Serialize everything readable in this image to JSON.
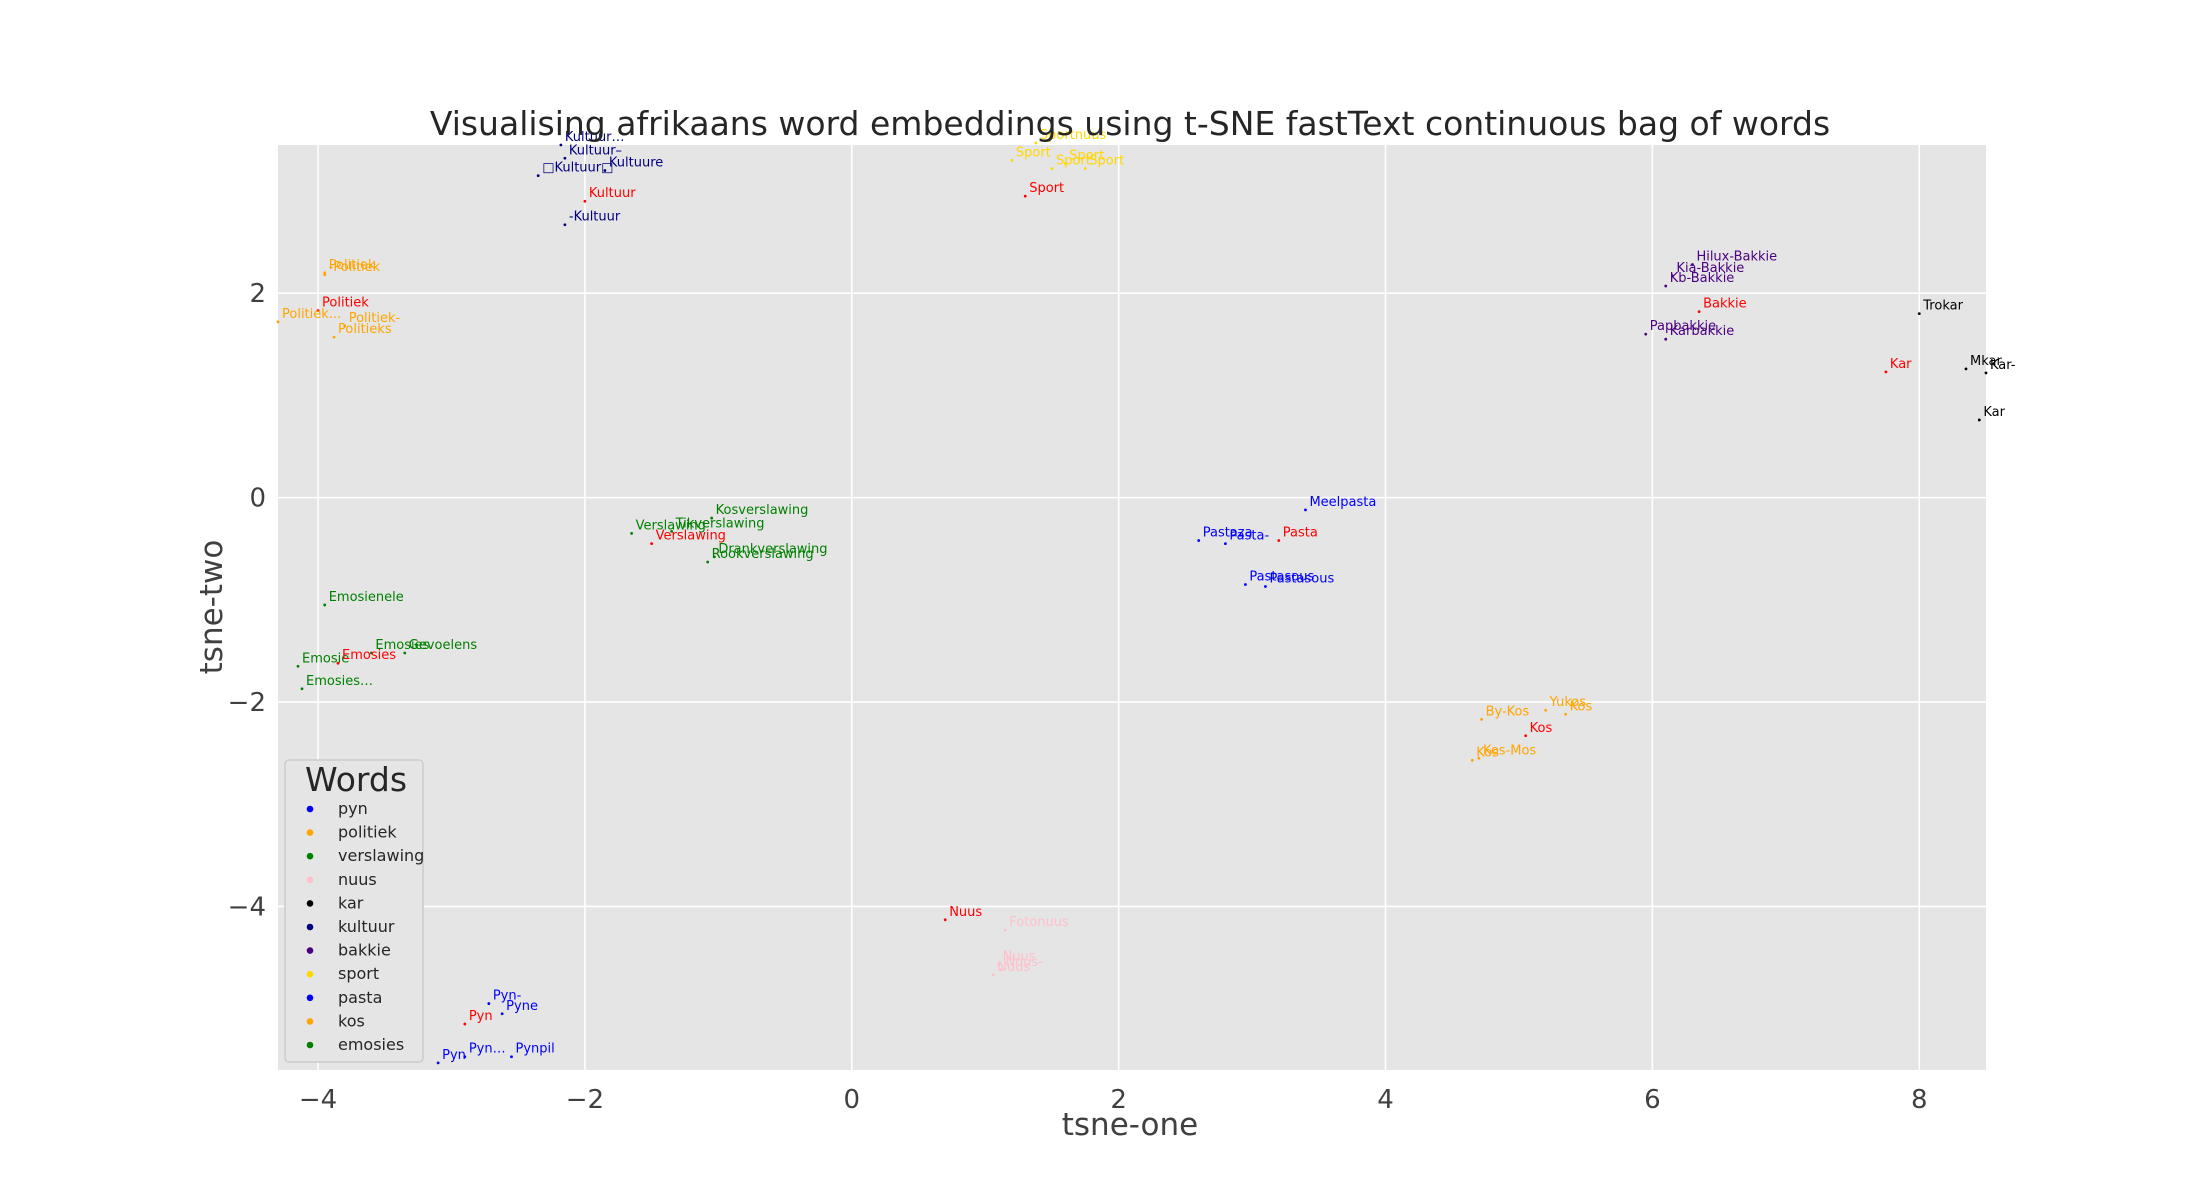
{
  "chart_data": {
    "type": "scatter",
    "title": "Visualising afrikaans word embeddings using t-SNE fastText continuous bag of words",
    "xlabel": "tsne-one",
    "ylabel": "tsne-two",
    "xlim": [
      -4.3,
      8.5
    ],
    "ylim": [
      -5.6,
      3.45
    ],
    "xticks": [
      -4,
      -2,
      0,
      2,
      4,
      6,
      8
    ],
    "yticks": [
      -4,
      -2,
      0,
      2
    ],
    "grid": true,
    "legend": {
      "title": "Words",
      "position": "lower-left",
      "entries": [
        {
          "label": "pyn",
          "color": "#0000ff"
        },
        {
          "label": "politiek",
          "color": "#ffa500"
        },
        {
          "label": "verslawing",
          "color": "#008000"
        },
        {
          "label": "nuus",
          "color": "#ffc0cb"
        },
        {
          "label": "kar",
          "color": "#000000"
        },
        {
          "label": "kultuur",
          "color": "#000080"
        },
        {
          "label": "bakkie",
          "color": "#4b0082"
        },
        {
          "label": "sport",
          "color": "#ffd700"
        },
        {
          "label": "pasta",
          "color": "#0000ff"
        },
        {
          "label": "kos",
          "color": "#ffa500"
        },
        {
          "label": "emosies",
          "color": "#008000"
        }
      ]
    },
    "query_color": "#ff0000",
    "points": [
      {
        "label": "Pyn",
        "x": -2.9,
        "y": -5.15,
        "color": "#ff0000"
      },
      {
        "label": "Pyn-",
        "x": -2.72,
        "y": -4.95,
        "color": "#0000ff"
      },
      {
        "label": "Pyne",
        "x": -2.62,
        "y": -5.05,
        "color": "#0000ff"
      },
      {
        "label": "Pyn",
        "x": -3.1,
        "y": -5.53,
        "color": "#0000ff"
      },
      {
        "label": "Pyn…",
        "x": -2.9,
        "y": -5.47,
        "color": "#0000ff"
      },
      {
        "label": "Pynpil",
        "x": -2.55,
        "y": -5.47,
        "color": "#0000ff"
      },
      {
        "label": "Politiek",
        "x": -4.0,
        "y": 1.83,
        "color": "#ff0000"
      },
      {
        "label": "Politiek",
        "x": -3.95,
        "y": 2.2,
        "color": "#ffa500"
      },
      {
        "label": "-Politiek",
        "x": -3.95,
        "y": 2.18,
        "color": "#ffa500"
      },
      {
        "label": "Politiek...",
        "x": -4.3,
        "y": 1.72,
        "color": "#ffa500"
      },
      {
        "label": "Politiek-",
        "x": -3.8,
        "y": 1.68,
        "color": "#ffa500"
      },
      {
        "label": "Politieks",
        "x": -3.88,
        "y": 1.57,
        "color": "#ffa500"
      },
      {
        "label": "Kosverslawing",
        "x": -1.05,
        "y": -0.2,
        "color": "#008000"
      },
      {
        "label": "Verslawing",
        "x": -1.65,
        "y": -0.35,
        "color": "#008000"
      },
      {
        "label": "Tikverslawing",
        "x": -1.35,
        "y": -0.33,
        "color": "#008000"
      },
      {
        "label": "Verslawing",
        "x": -1.5,
        "y": -0.45,
        "color": "#ff0000"
      },
      {
        "label": "Drankverslawing",
        "x": -1.03,
        "y": -0.58,
        "color": "#008000"
      },
      {
        "label": "Rookverslawing",
        "x": -1.08,
        "y": -0.63,
        "color": "#008000"
      },
      {
        "label": "Nuus",
        "x": 0.7,
        "y": -4.13,
        "color": "#ff0000"
      },
      {
        "label": "Fotonuus",
        "x": 1.15,
        "y": -4.23,
        "color": "#ffc0cb"
      },
      {
        "label": "Nuus",
        "x": 1.1,
        "y": -4.57,
        "color": "#ffc0cb"
      },
      {
        "label": "Nuus-",
        "x": 1.12,
        "y": -4.62,
        "color": "#ffc0cb"
      },
      {
        "label": "Nuus",
        "x": 1.06,
        "y": -4.67,
        "color": "#ffc0cb"
      },
      {
        "label": "Kar",
        "x": 7.75,
        "y": 1.23,
        "color": "#ff0000"
      },
      {
        "label": "Trokar",
        "x": 8.0,
        "y": 1.8,
        "color": "#000000"
      },
      {
        "label": "Mkar",
        "x": 8.35,
        "y": 1.26,
        "color": "#000000"
      },
      {
        "label": "Kar-",
        "x": 8.5,
        "y": 1.22,
        "color": "#000000"
      },
      {
        "label": "Kar",
        "x": 8.45,
        "y": 0.76,
        "color": "#000000"
      },
      {
        "label": "Kultuur…",
        "x": -2.18,
        "y": 3.45,
        "color": "#000080"
      },
      {
        "label": "Kultuur–",
        "x": -2.15,
        "y": 3.32,
        "color": "#000080"
      },
      {
        "label": "Kultuure",
        "x": -1.85,
        "y": 3.2,
        "color": "#000080"
      },
      {
        "label": "□Kultuur□",
        "x": -2.35,
        "y": 3.15,
        "color": "#000080"
      },
      {
        "label": "Kultuur",
        "x": -2.0,
        "y": 2.9,
        "color": "#ff0000"
      },
      {
        "label": "-Kultuur",
        "x": -2.15,
        "y": 2.67,
        "color": "#000080"
      },
      {
        "label": "Hilux-Bakkie",
        "x": 6.3,
        "y": 2.28,
        "color": "#4b0082"
      },
      {
        "label": "Kia-Bakkie",
        "x": 6.15,
        "y": 2.17,
        "color": "#4b0082"
      },
      {
        "label": "Kb-Bakkie",
        "x": 6.1,
        "y": 2.07,
        "color": "#4b0082"
      },
      {
        "label": "Bakkie",
        "x": 6.35,
        "y": 1.82,
        "color": "#ff0000"
      },
      {
        "label": "Papbakkie",
        "x": 5.95,
        "y": 1.6,
        "color": "#4b0082"
      },
      {
        "label": "Karbakkie",
        "x": 6.1,
        "y": 1.55,
        "color": "#4b0082"
      },
      {
        "label": "Sport",
        "x": 1.3,
        "y": 2.95,
        "color": "#ff0000"
      },
      {
        "label": "Sportnuus",
        "x": 1.38,
        "y": 3.47,
        "color": "#ffd700"
      },
      {
        "label": "Sport",
        "x": 1.2,
        "y": 3.3,
        "color": "#ffd700"
      },
      {
        "label": "Sport",
        "x": 1.6,
        "y": 3.27,
        "color": "#ffd700"
      },
      {
        "label": "Sport",
        "x": 1.5,
        "y": 3.22,
        "color": "#ffd700"
      },
      {
        "label": "Sport",
        "x": 1.75,
        "y": 3.22,
        "color": "#ffd700"
      },
      {
        "label": "Meelpasta",
        "x": 3.4,
        "y": -0.12,
        "color": "#0000ff"
      },
      {
        "label": "Pastaza",
        "x": 2.6,
        "y": -0.42,
        "color": "#0000ff"
      },
      {
        "label": "Pasta-",
        "x": 2.8,
        "y": -0.45,
        "color": "#0000ff"
      },
      {
        "label": "Pasta",
        "x": 3.2,
        "y": -0.42,
        "color": "#ff0000"
      },
      {
        "label": "Pastasous",
        "x": 2.95,
        "y": -0.85,
        "color": "#0000ff"
      },
      {
        "label": "Pastasous",
        "x": 3.1,
        "y": -0.87,
        "color": "#0000ff"
      },
      {
        "label": "Yukos",
        "x": 5.2,
        "y": -2.08,
        "color": "#ffa500"
      },
      {
        "label": "Kos",
        "x": 5.35,
        "y": -2.12,
        "color": "#ffa500"
      },
      {
        "label": "By-Kos",
        "x": 4.72,
        "y": -2.17,
        "color": "#ffa500"
      },
      {
        "label": "Kos",
        "x": 5.05,
        "y": -2.33,
        "color": "#ff0000"
      },
      {
        "label": "Kos",
        "x": 4.65,
        "y": -2.57,
        "color": "#ffa500"
      },
      {
        "label": "Kos-Mos",
        "x": 4.7,
        "y": -2.55,
        "color": "#ffa500"
      },
      {
        "label": "Emosienele",
        "x": -3.95,
        "y": -1.05,
        "color": "#008000"
      },
      {
        "label": "Emosies",
        "x": -3.6,
        "y": -1.52,
        "color": "#008000"
      },
      {
        "label": "Gevoelens",
        "x": -3.35,
        "y": -1.52,
        "color": "#008000"
      },
      {
        "label": "Emosie",
        "x": -4.15,
        "y": -1.65,
        "color": "#008000"
      },
      {
        "label": "Emosies",
        "x": -3.85,
        "y": -1.62,
        "color": "#ff0000"
      },
      {
        "label": "Emosies…",
        "x": -4.12,
        "y": -1.87,
        "color": "#008000"
      }
    ]
  }
}
